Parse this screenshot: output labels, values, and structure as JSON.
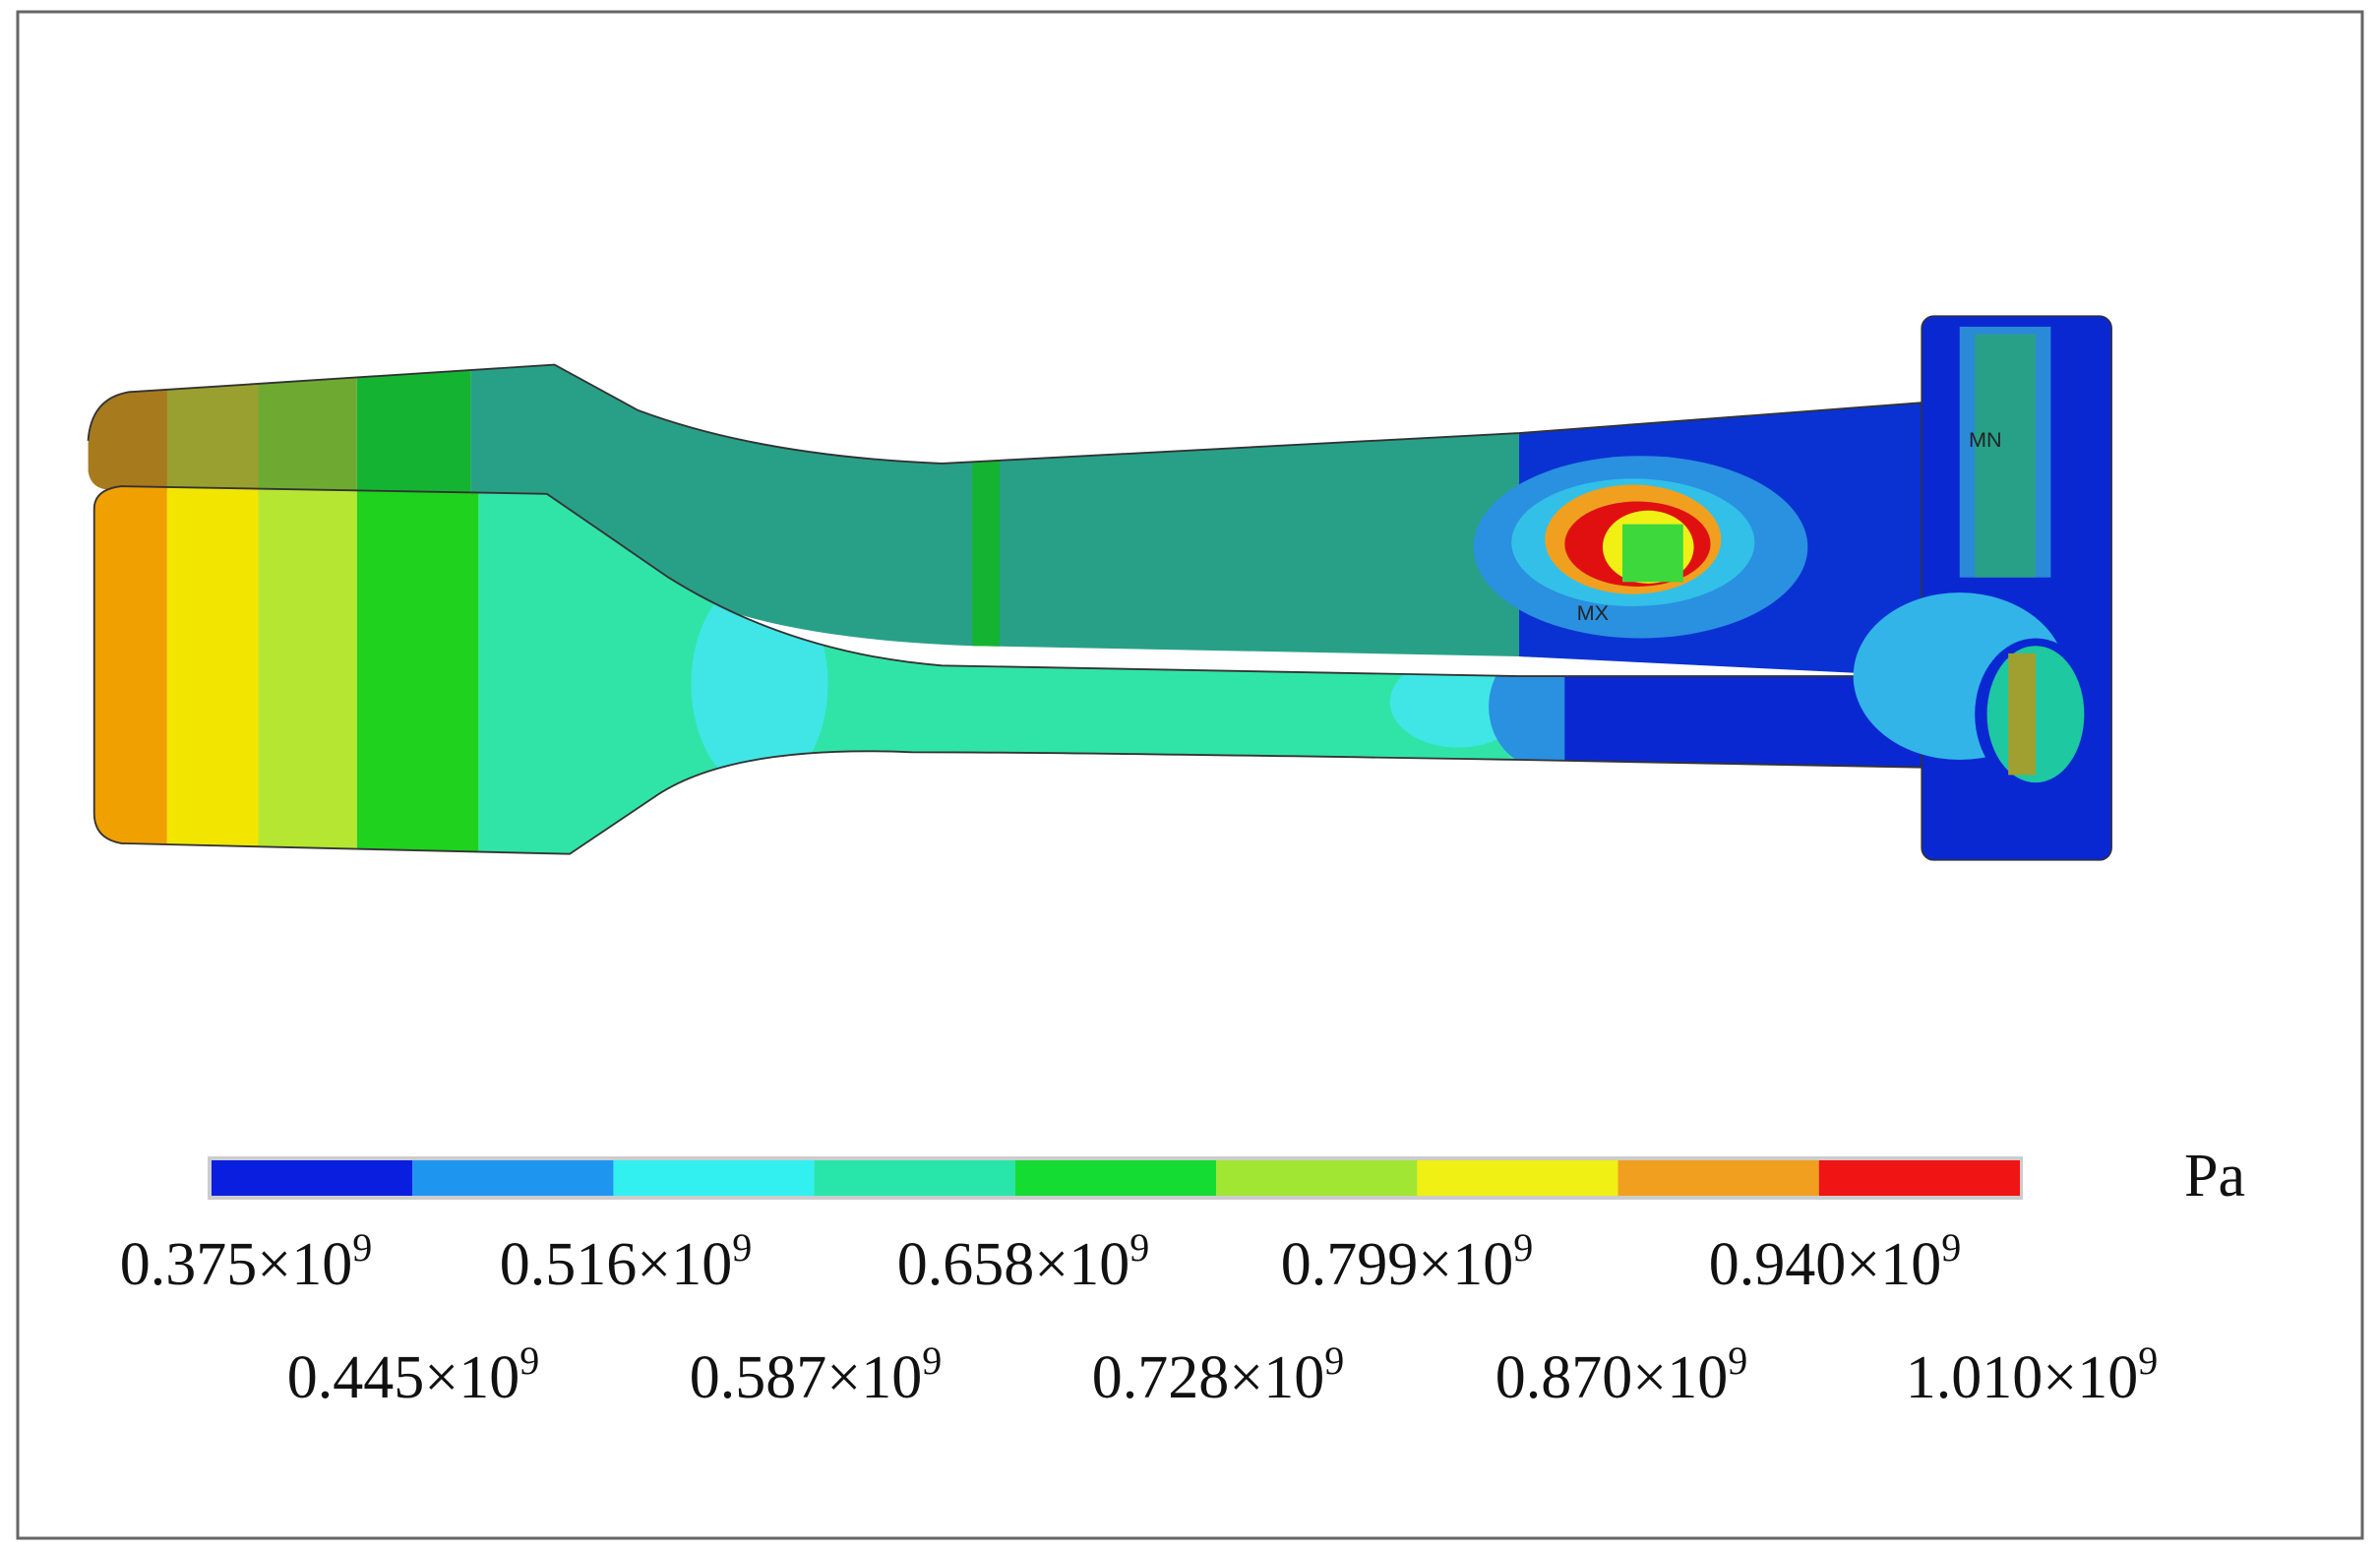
{
  "legend": {
    "unit": "Pa",
    "colors": [
      "#0a1ee0",
      "#1e96f0",
      "#32f0f0",
      "#28e6aa",
      "#14dc32",
      "#a0e632",
      "#f0f014",
      "#f0a01e",
      "#f01414"
    ],
    "labels_top": [
      {
        "mantissa": "0.375×10",
        "exponent": "9"
      },
      {
        "mantissa": "0.516×10",
        "exponent": "9"
      },
      {
        "mantissa": "0.658×10",
        "exponent": "9"
      },
      {
        "mantissa": "0.799×10",
        "exponent": "9"
      },
      {
        "mantissa": "0.940×10",
        "exponent": "9"
      }
    ],
    "labels_bottom": [
      {
        "mantissa": "0.445×10",
        "exponent": "9"
      },
      {
        "mantissa": "0.587×10",
        "exponent": "9"
      },
      {
        "mantissa": "0.728×10",
        "exponent": "9"
      },
      {
        "mantissa": "0.870×10",
        "exponent": "9"
      },
      {
        "mantissa": "1.010×10",
        "exponent": "9"
      }
    ]
  },
  "annotations": {
    "min": "MN",
    "max": "MX"
  }
}
